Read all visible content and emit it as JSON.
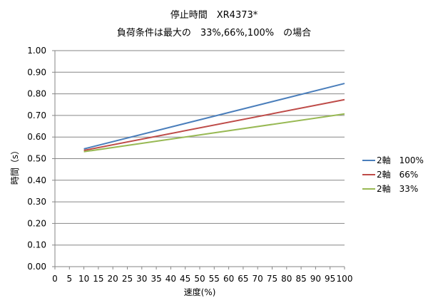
{
  "chart_data": {
    "type": "line",
    "title": "停止時間　XR4373*",
    "subtitle": "負荷条件は最大の　33%,66%,100%　の場合",
    "xlabel": "速度(%)",
    "ylabel": "時間（s）",
    "xlim": [
      0,
      100
    ],
    "ylim": [
      0,
      1.0
    ],
    "x_ticks": [
      "0",
      "5",
      "10",
      "15",
      "20",
      "25",
      "30",
      "35",
      "40",
      "45",
      "50",
      "55",
      "60",
      "65",
      "70",
      "75",
      "80",
      "85",
      "90",
      "95",
      "100"
    ],
    "y_ticks": [
      "0.00",
      "0.10",
      "0.20",
      "0.30",
      "0.40",
      "0.50",
      "0.60",
      "0.70",
      "0.80",
      "0.90",
      "1.00"
    ],
    "grid": "horizontal",
    "legend_position": "right",
    "series": [
      {
        "name": "2軸　100%",
        "color": "#4a7ebb",
        "x": [
          10,
          100
        ],
        "y": [
          0.545,
          0.848
        ]
      },
      {
        "name": "2軸　66%",
        "color": "#be4b48",
        "x": [
          10,
          100
        ],
        "y": [
          0.538,
          0.773
        ]
      },
      {
        "name": "2軸　33%",
        "color": "#98b954",
        "x": [
          10,
          100
        ],
        "y": [
          0.532,
          0.707
        ]
      }
    ]
  }
}
